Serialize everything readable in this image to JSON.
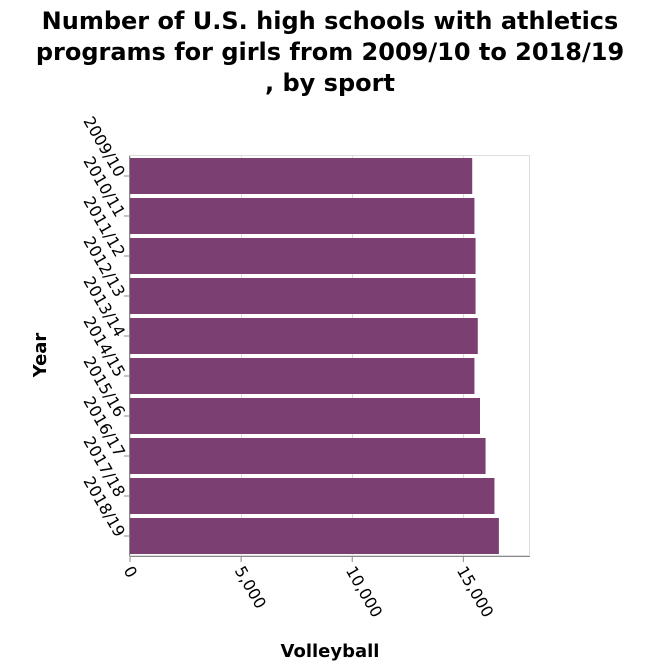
{
  "chart_data": {
    "type": "bar",
    "orientation": "horizontal",
    "title_lines": [
      "Number of U.S. high schools with athletics",
      "programs for girls from 2009/10 to 2018/19",
      ", by sport"
    ],
    "xlabel": "Volleyball",
    "ylabel": "Year",
    "categories": [
      "2009/10",
      "2010/11",
      "2011/12",
      "2012/13",
      "2013/14",
      "2014/15",
      "2015/16",
      "2016/17",
      "2017/18",
      "2018/19"
    ],
    "values": [
      15400,
      15500,
      15550,
      15550,
      15650,
      15500,
      15750,
      16000,
      16400,
      16600
    ],
    "xlim": [
      0,
      18000
    ],
    "xticks": [
      0,
      5000,
      10000,
      15000
    ],
    "xtick_labels": [
      "0",
      "5,000",
      "10,000",
      "15,000"
    ],
    "grid": "vertical",
    "bar_color": "#7b3f72"
  }
}
